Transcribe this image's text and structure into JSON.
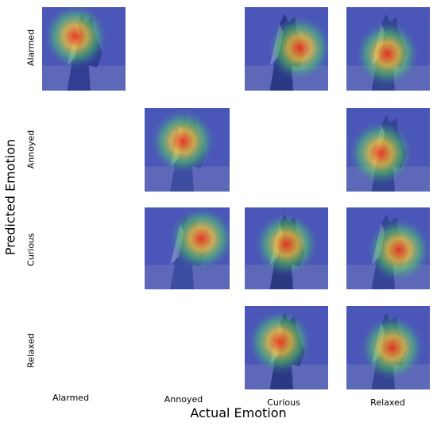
{
  "x_axis_title": "Actual Emotion",
  "y_axis_title": "Predicted Emotion",
  "categories": [
    "Alarmed",
    "Annoyed",
    "Curious",
    "Relaxed"
  ],
  "matrix": [
    [
      true,
      false,
      true,
      true
    ],
    [
      false,
      true,
      false,
      true
    ],
    [
      false,
      true,
      true,
      true
    ],
    [
      false,
      false,
      true,
      true
    ]
  ],
  "colors": {
    "overlay_blue": "#4a56b8",
    "heat_hot": "#ff3010",
    "heat_warm": "#ffd030",
    "heat_mid": "#50e060"
  }
}
